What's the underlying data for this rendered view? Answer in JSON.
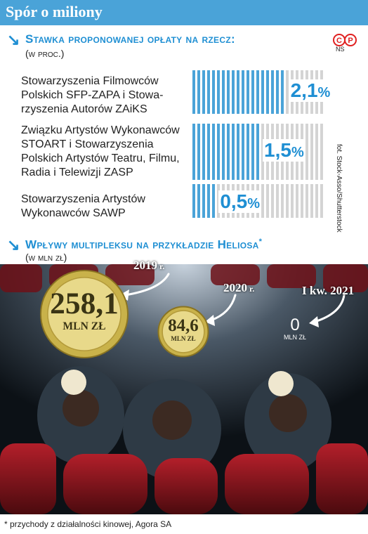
{
  "header": {
    "title": "Spór o miliony"
  },
  "section1": {
    "title": "Stawka proponowanej opłaty na rzecz:",
    "subtitle": "(w proc.)",
    "logo_text": "©P",
    "logo_sub": "NS"
  },
  "credit": "fot. Stock-Asso/Shutterstock",
  "section2": {
    "title": "Wpływy multipleksu na przykładzie Heliosa",
    "title_mark": "*",
    "subtitle": "(w mln zł)"
  },
  "footnote": "* przychody z działalności kinowej, Agora SA",
  "colors": {
    "accent": "#1f8fd3",
    "bar_blue": "#4aa3d8",
    "bar_grey": "#d4d4d4",
    "coin_gold": "#c9b24a"
  },
  "chart_data": [
    {
      "type": "bar",
      "title": "Stawka proponowanej opłaty na rzecz:",
      "subtitle": "(w proc.)",
      "orientation": "horizontal",
      "categories": [
        "Stowarzyszenia Filmowców Polskich SFP-ZAPA i Stowarzyszenia Autorów ZAiKS",
        "Związku Artystów Wykonawców STOART i Stowarzyszenia Polskich Artystów Teatru, Filmu, Radia i Telewizji ZASP",
        "Stowarzyszenia Artystów Wykonawców SAWP"
      ],
      "label_lines": [
        [
          "Stowarzyszenia Filmowców",
          "Polskich SFP-ZAPA i Stowa-",
          "rzyszenia Autorów ZAiKS"
        ],
        [
          "Związku Artystów Wykonawców",
          "STOART i Stowarzyszenia",
          "Polskich Artystów Teatru, Filmu,",
          "Radia i Telewizji ZASP"
        ],
        [
          "Stowarzyszenia Artystów",
          "Wykonawców SAWP"
        ]
      ],
      "values": [
        2.1,
        1.5,
        0.5
      ],
      "value_labels": [
        "2,1",
        "1,5",
        "0,5"
      ],
      "unit": "%",
      "xlim": [
        0,
        3
      ]
    },
    {
      "type": "bar",
      "title": "Wpływy multipleksu na przykładzie Heliosa*",
      "subtitle": "(w mln zł)",
      "categories": [
        "2019 r.",
        "2020 r.",
        "I kw. 2021"
      ],
      "category_parts": [
        [
          "2019",
          " r."
        ],
        [
          "2020",
          " r."
        ],
        [
          "I kw. 2021",
          ""
        ]
      ],
      "values": [
        258.1,
        84.6,
        0
      ],
      "value_labels": [
        "258,1",
        "84,6",
        "0"
      ],
      "unit": "mln zł"
    }
  ]
}
